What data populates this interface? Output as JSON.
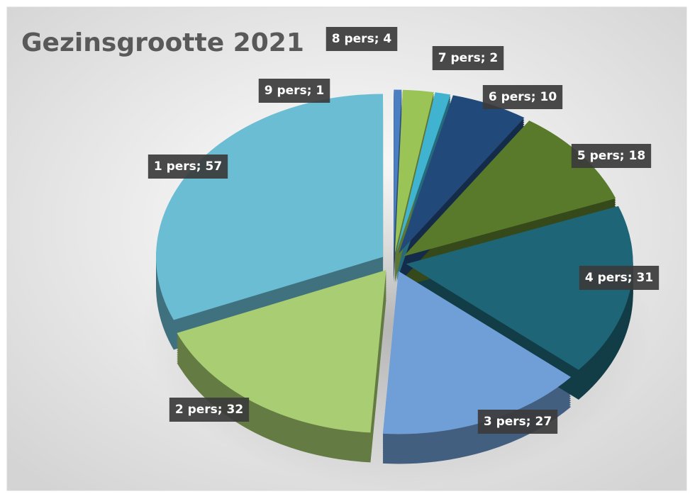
{
  "chart_data": {
    "type": "pie",
    "title": "Gezinsgrootte 2021",
    "categories": [
      "1 pers",
      "2 pers",
      "3 pers",
      "4 pers",
      "5 pers",
      "6 pers",
      "7 pers",
      "8 pers",
      "9 pers"
    ],
    "values": [
      57,
      32,
      27,
      31,
      18,
      10,
      2,
      4,
      1
    ],
    "colors": [
      "#6bbdd4",
      "#a9cd72",
      "#6f9fd6",
      "#1e6577",
      "#5a7a2b",
      "#214a7a",
      "#3fb3cf",
      "#9bc457",
      "#4a7fc2"
    ],
    "label_separator": "; "
  }
}
